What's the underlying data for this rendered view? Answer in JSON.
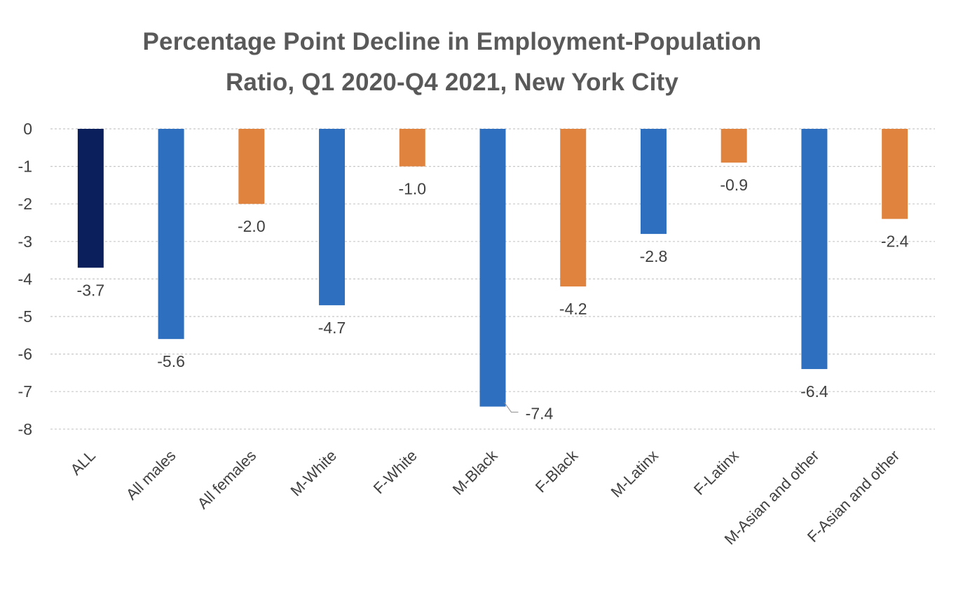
{
  "chart_data": {
    "type": "bar",
    "title_lines": [
      "Percentage Point Decline in Employment-Population",
      "Ratio, Q1 2020-Q4 2021, New York City"
    ],
    "categories": [
      "ALL",
      "All males",
      "All females",
      "M-White",
      "F-White",
      "M-Black",
      "F-Black",
      "M-Latinx",
      "F-Latinx",
      "M-Asian and other",
      "F-Asian and other"
    ],
    "values": [
      -3.7,
      -5.6,
      -2.0,
      -4.7,
      -1.0,
      -7.4,
      -4.2,
      -2.8,
      -0.9,
      -6.4,
      -2.4
    ],
    "data_labels": [
      "-3.7",
      "-5.6",
      "-2.0",
      "-4.7",
      "-1.0",
      "-7.4",
      "-4.2",
      "-2.8",
      "-0.9",
      "-6.4",
      "-2.4"
    ],
    "bar_groups": [
      "total",
      "male",
      "female",
      "male",
      "female",
      "male",
      "female",
      "male",
      "female",
      "male",
      "female"
    ],
    "colors": {
      "total": "#0b1f5c",
      "male": "#2f6fbf",
      "female": "#e0833f",
      "grid": "#c8c8c8",
      "text": "#404040",
      "title": "#595959"
    },
    "y_ticks": [
      "0",
      "-1",
      "-2",
      "-3",
      "-4",
      "-5",
      "-6",
      "-7",
      "-8"
    ],
    "ylim": [
      -8,
      0
    ],
    "xlabel": "",
    "ylabel": "",
    "grid": true,
    "gridline_style": "dashed",
    "legend": "none"
  }
}
